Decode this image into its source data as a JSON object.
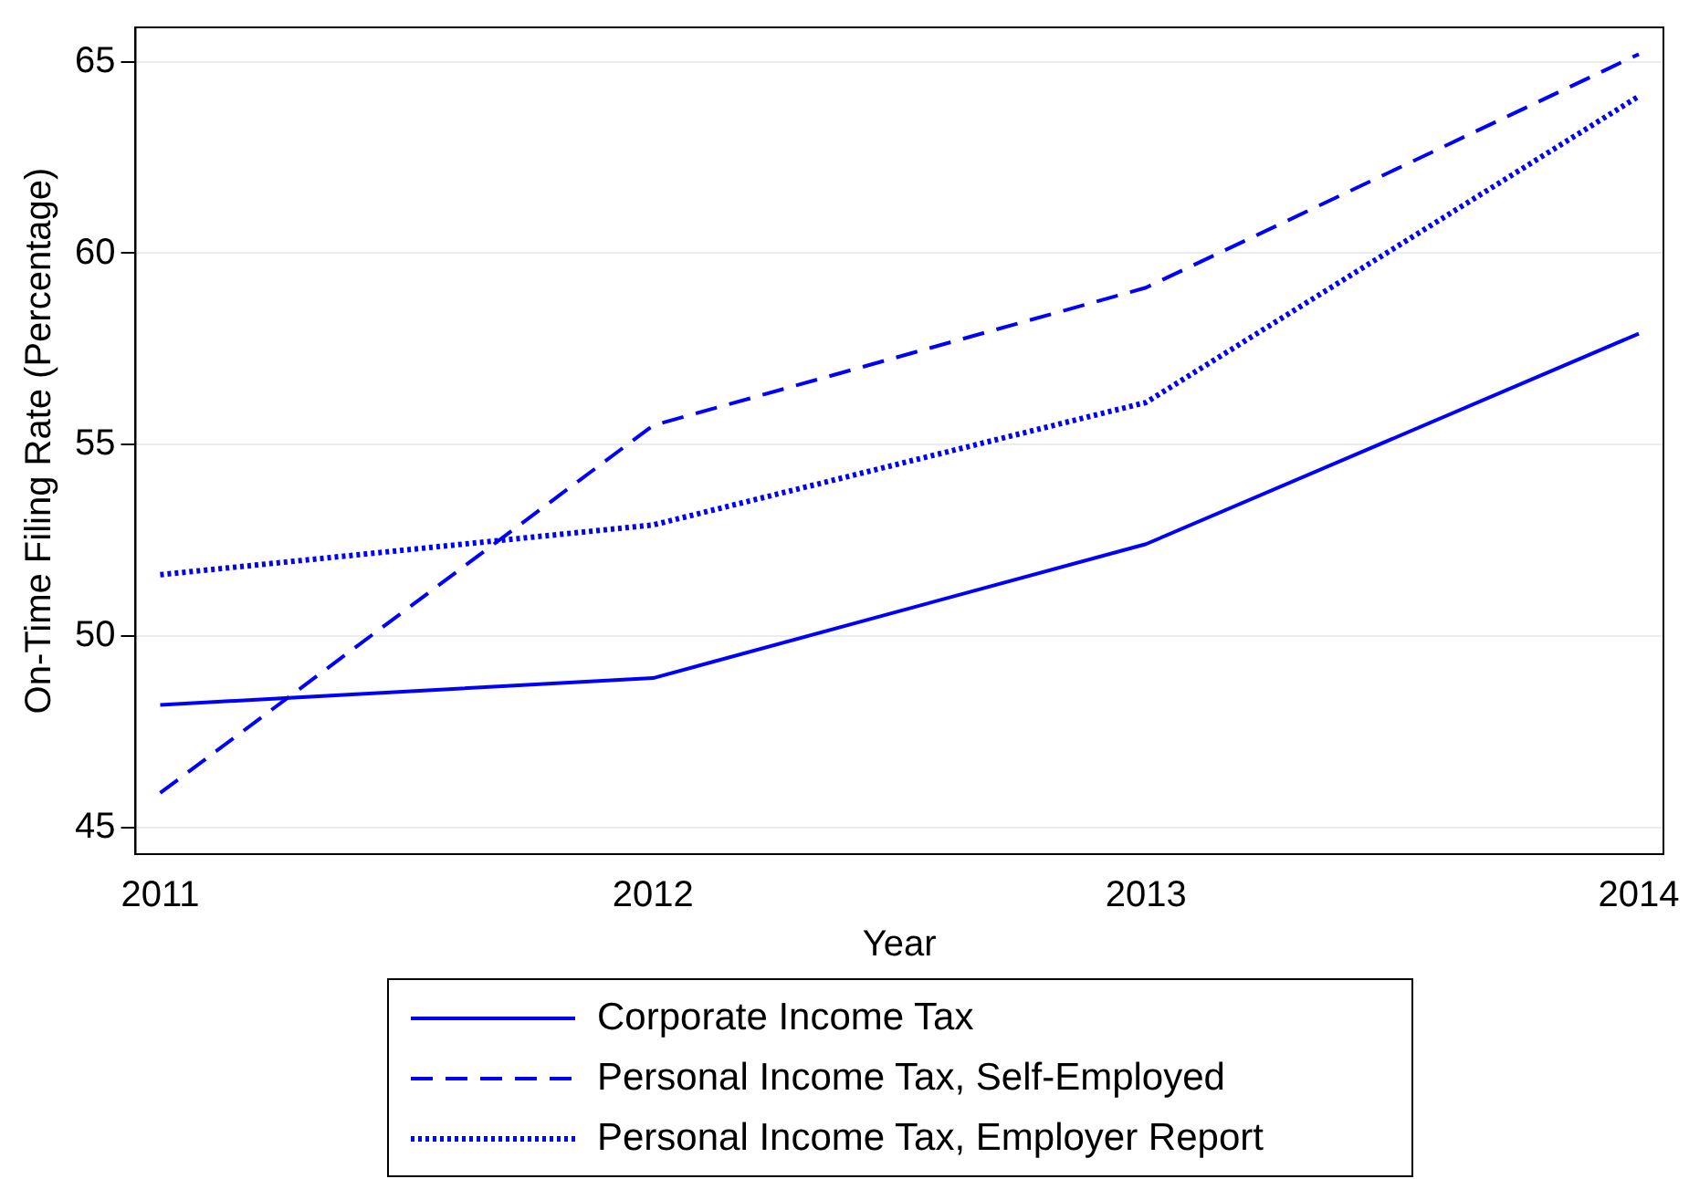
{
  "chart_data": {
    "type": "line",
    "xlabel": "Year",
    "ylabel": "On-Time Filing Rate (Percentage)",
    "x": [
      2011,
      2012,
      2013,
      2014
    ],
    "series": [
      {
        "name": "Corporate Income Tax",
        "color": "#0000ff",
        "line_style": "solid",
        "values": [
          48.2,
          48.9,
          52.4,
          57.9
        ]
      },
      {
        "name": "Personal Income Tax, Self-Employed",
        "color": "#0000ff",
        "line_style": "dashed",
        "values": [
          45.9,
          55.5,
          59.1,
          65.2
        ]
      },
      {
        "name": "Personal Income Tax, Employer Report",
        "color": "#0000ff",
        "line_style": "dotted",
        "values": [
          51.6,
          52.9,
          56.1,
          64.1
        ]
      }
    ],
    "xlim": [
      2010.95,
      2014.05
    ],
    "xticks": [
      2011,
      2012,
      2013,
      2014
    ],
    "ylim": [
      44.3,
      65.9
    ],
    "yticks": [
      45,
      50,
      55,
      60,
      65
    ],
    "grid": "y",
    "legend": "bottom",
    "marker": "none"
  }
}
